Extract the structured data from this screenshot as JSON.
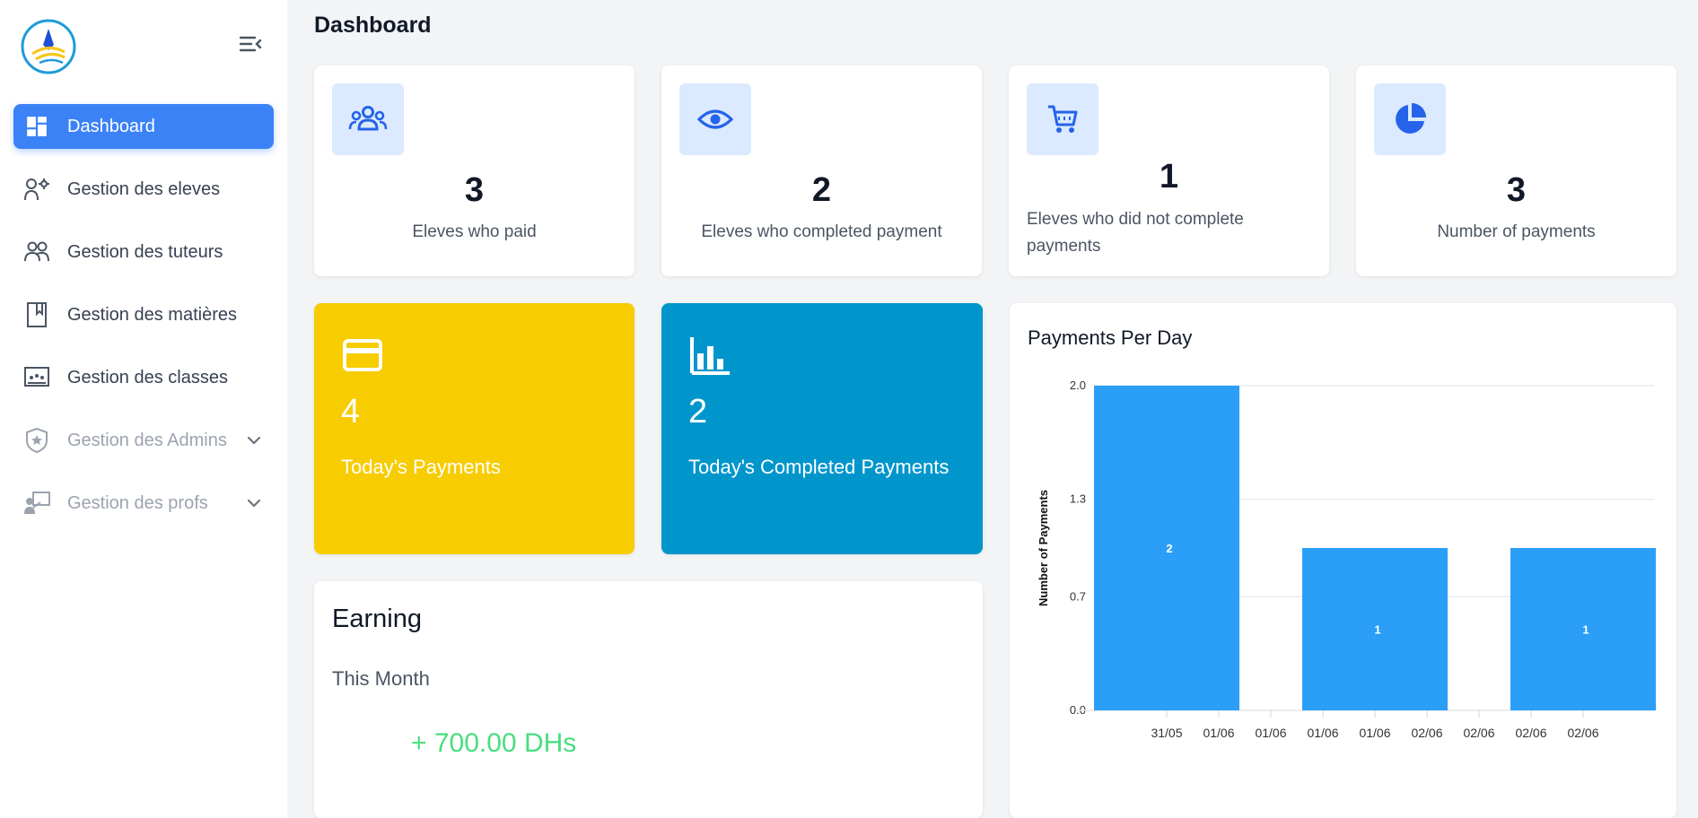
{
  "page": {
    "title": "Dashboard"
  },
  "sidebar": {
    "items": [
      {
        "label": "Dashboard",
        "icon": "dashboard-icon",
        "active": true
      },
      {
        "label": "Gestion des eleves",
        "icon": "user-cog-icon"
      },
      {
        "label": "Gestion des tuteurs",
        "icon": "users-icon"
      },
      {
        "label": "Gestion des matières",
        "icon": "bookmark-icon"
      },
      {
        "label": "Gestion des classes",
        "icon": "classroom-icon"
      },
      {
        "label": "Gestion des Admins",
        "icon": "shield-icon",
        "expandable": true
      },
      {
        "label": "Gestion des profs",
        "icon": "teacher-icon",
        "expandable": true
      }
    ]
  },
  "stats": [
    {
      "value": "3",
      "label": "Eleves who paid",
      "icon": "users-icon"
    },
    {
      "value": "2",
      "label": "Eleves who completed payment",
      "icon": "eye-icon"
    },
    {
      "value": "1",
      "label": "Eleves who did not complete payments",
      "icon": "cart-icon"
    },
    {
      "value": "3",
      "label": "Number of payments",
      "icon": "pie-chart-icon"
    }
  ],
  "today": {
    "payments": {
      "value": "4",
      "label": "Today's Payments",
      "icon": "credit-card-icon",
      "color": "#f7cc00"
    },
    "completed": {
      "value": "2",
      "label": "Today's Completed Payments",
      "icon": "bar-chart-icon",
      "color": "#0096cc"
    }
  },
  "earning": {
    "title": "Earning",
    "period": "This Month",
    "value": "+ 700.00 DHs"
  },
  "colors": {
    "accent": "#3b82f6",
    "bar": "#2b9ef8",
    "earning": "#4ade80"
  },
  "chart_data": {
    "type": "bar",
    "title": "Payments Per Day",
    "ylabel": "Number of Payments",
    "xlabel": "",
    "ylim": [
      0,
      2
    ],
    "yticks": [
      "0.0",
      "0.7",
      "1.3",
      "2.0"
    ],
    "xtick_labels": [
      "31/05",
      "01/06",
      "01/06",
      "01/06",
      "01/06",
      "02/06",
      "02/06",
      "02/06",
      "02/06"
    ],
    "bars": [
      {
        "value": 2,
        "label": "2"
      },
      {
        "value": 1,
        "label": "1"
      },
      {
        "value": 1,
        "label": "1"
      }
    ],
    "grid": true
  }
}
